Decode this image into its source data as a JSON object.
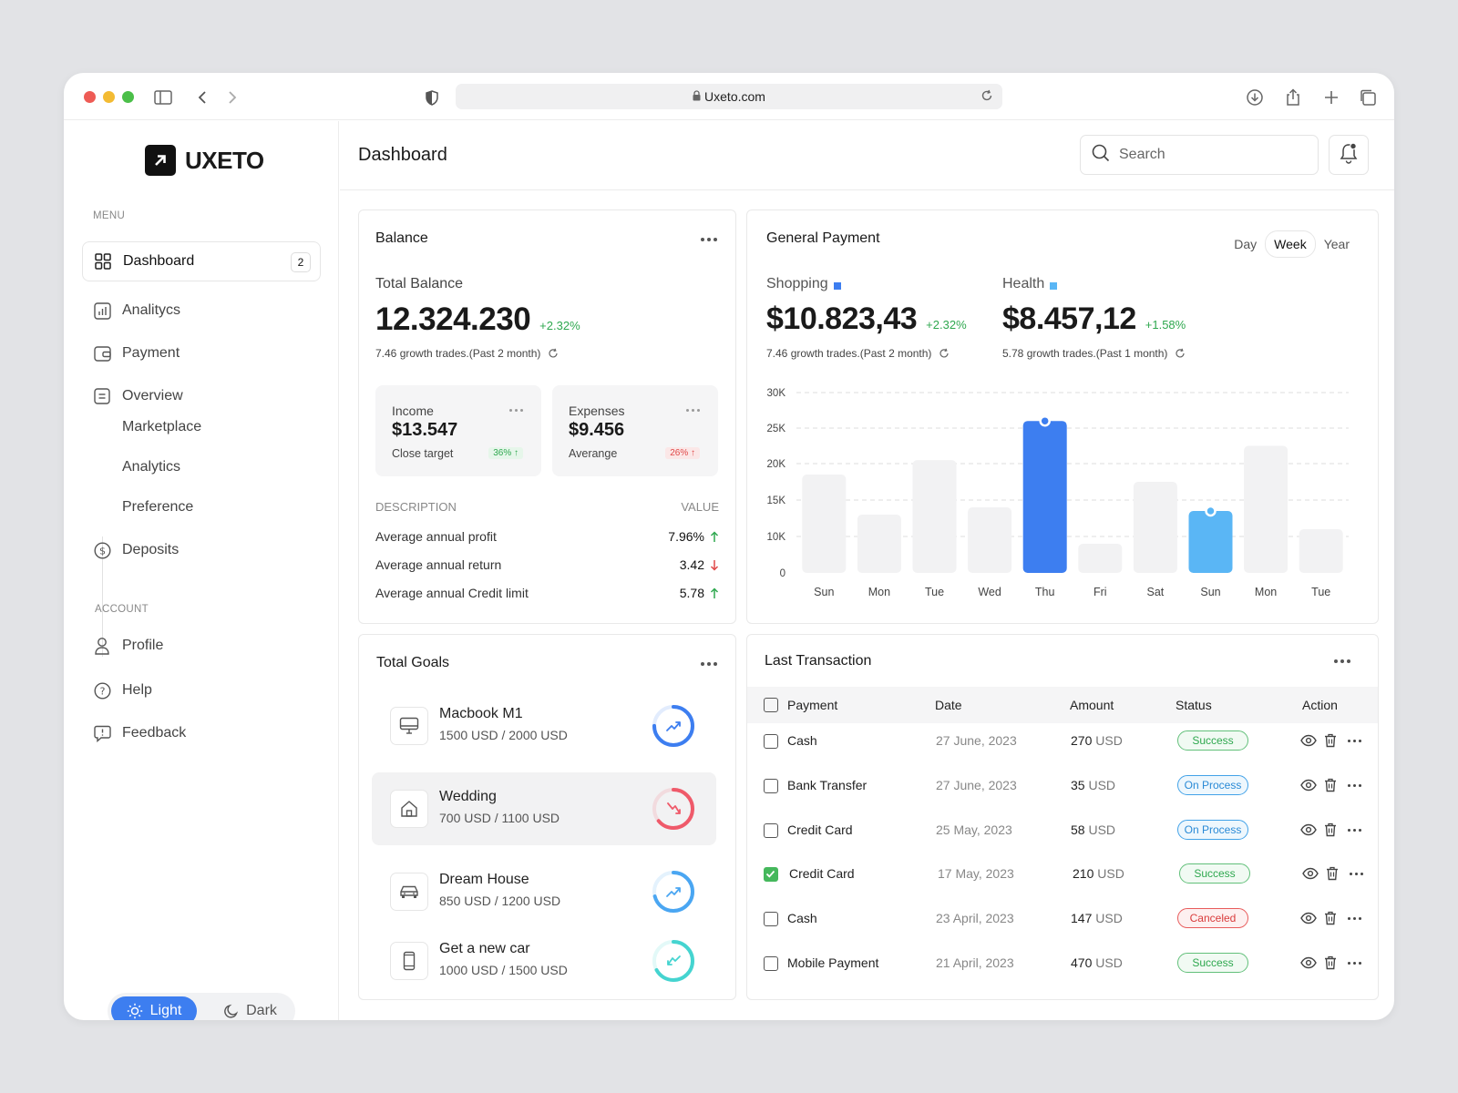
{
  "browser": {
    "url": "Uxeto.com"
  },
  "brand": {
    "name": "UXETO"
  },
  "sidebar": {
    "menu_label": "MENU",
    "account_label": "ACCOUNT",
    "dashboard": {
      "label": "Dashboard",
      "badge": "2"
    },
    "items": [
      {
        "label": "Analitycs",
        "icon": "analytics-icon"
      },
      {
        "label": "Payment",
        "icon": "wallet-icon"
      },
      {
        "label": "Overview",
        "icon": "document-icon"
      }
    ],
    "subitems": [
      "Marketplace",
      "Analytics",
      "Preference"
    ],
    "deposits": "Deposits",
    "account_items": [
      {
        "label": "Profile",
        "icon": "user-icon"
      },
      {
        "label": "Help",
        "icon": "help-icon"
      },
      {
        "label": "Feedback",
        "icon": "feedback-icon"
      }
    ],
    "theme": {
      "light": "Light",
      "dark": "Dark"
    }
  },
  "header": {
    "title": "Dashboard",
    "search_placeholder": "Search"
  },
  "balance": {
    "title": "Balance",
    "total_label": "Total Balance",
    "total_value": "12.324.230",
    "total_change": "+2.32%",
    "growth_note": "7.46 growth trades.(Past 2 month)",
    "income": {
      "label": "Income",
      "value": "$13.547",
      "sub": "Close target",
      "pill": "36% ↑"
    },
    "expenses": {
      "label": "Expenses",
      "value": "$9.456",
      "sub": "Averange",
      "pill": "26% ↑"
    },
    "desc_header": "DESCRIPTION",
    "value_header": "VALUE",
    "rows": [
      {
        "label": "Average annual profit",
        "value": "7.96%",
        "dir": "up"
      },
      {
        "label": "Average annual return",
        "value": "3.42",
        "dir": "down"
      },
      {
        "label": "Average annual Credit limit",
        "value": "5.78",
        "dir": "up"
      }
    ]
  },
  "payment": {
    "title": "General Payment",
    "tabs": [
      "Day",
      "Week",
      "Year"
    ],
    "active_tab": "Week",
    "shopping": {
      "label": "Shopping",
      "value": "$10.823,43",
      "change": "+2.32%",
      "note": "7.46 growth trades.(Past 2 month)",
      "color": "#3d7ef0"
    },
    "health": {
      "label": "Health",
      "value": "$8.457,12",
      "change": "+1.58%",
      "note": "5.78 growth trades.(Past 1 month)",
      "color": "#5ab6f5"
    }
  },
  "chart_data": {
    "type": "bar",
    "categories": [
      "Sun",
      "Mon",
      "Tue",
      "Wed",
      "Thu",
      "Fri",
      "Sat",
      "Sun",
      "Mon",
      "Tue"
    ],
    "values": [
      18500,
      13000,
      20500,
      14000,
      26000,
      8000,
      17500,
      13500,
      22500,
      11000
    ],
    "highlight": {
      "4": "#3d7ef0",
      "7": "#5ab6f5"
    },
    "yticks": [
      "0",
      "10K",
      "15K",
      "20K",
      "25K",
      "30K"
    ],
    "ylim": [
      0,
      30000
    ],
    "grid": true
  },
  "goals": {
    "title": "Total Goals",
    "items": [
      {
        "name": "Macbook M1",
        "amount": "1500 USD / 2000 USD",
        "icon": "monitor-icon",
        "progress": 0.75,
        "color": "#3d7ef0",
        "trend": "up"
      },
      {
        "name": "Wedding",
        "amount": "700 USD / 1100 USD",
        "icon": "home-icon",
        "progress": 0.64,
        "color": "#ef5a6a",
        "trend": "down"
      },
      {
        "name": "Dream House",
        "amount": "850 USD / 1200 USD",
        "icon": "car-icon",
        "progress": 0.71,
        "color": "#4aa6f2",
        "trend": "up"
      },
      {
        "name": "Get a new car",
        "amount": "1000 USD / 1500 USD",
        "icon": "phone-icon",
        "progress": 0.67,
        "color": "#45d4d0",
        "trend": "down-left"
      }
    ]
  },
  "transactions": {
    "title": "Last Transaction",
    "headers": [
      "Payment",
      "Date",
      "Amount",
      "Status",
      "Action"
    ],
    "rows": [
      {
        "payment": "Cash",
        "date": "27 June, 2023",
        "amount": "270",
        "currency": "USD",
        "status": "Success",
        "checked": false
      },
      {
        "payment": "Bank Transfer",
        "date": "27 June, 2023",
        "amount": "35",
        "currency": "USD",
        "status": "On Process",
        "checked": false
      },
      {
        "payment": "Credit Card",
        "date": "25 May, 2023",
        "amount": "58",
        "currency": "USD",
        "status": "On Process",
        "checked": false
      },
      {
        "payment": "Credit Card",
        "date": "17 May, 2023",
        "amount": "210",
        "currency": "USD",
        "status": "Success",
        "checked": true
      },
      {
        "payment": "Cash",
        "date": "23 April, 2023",
        "amount": "147",
        "currency": "USD",
        "status": "Canceled",
        "checked": false
      },
      {
        "payment": "Mobile Payment",
        "date": "21 April, 2023",
        "amount": "470",
        "currency": "USD",
        "status": "Success",
        "checked": false
      }
    ]
  }
}
